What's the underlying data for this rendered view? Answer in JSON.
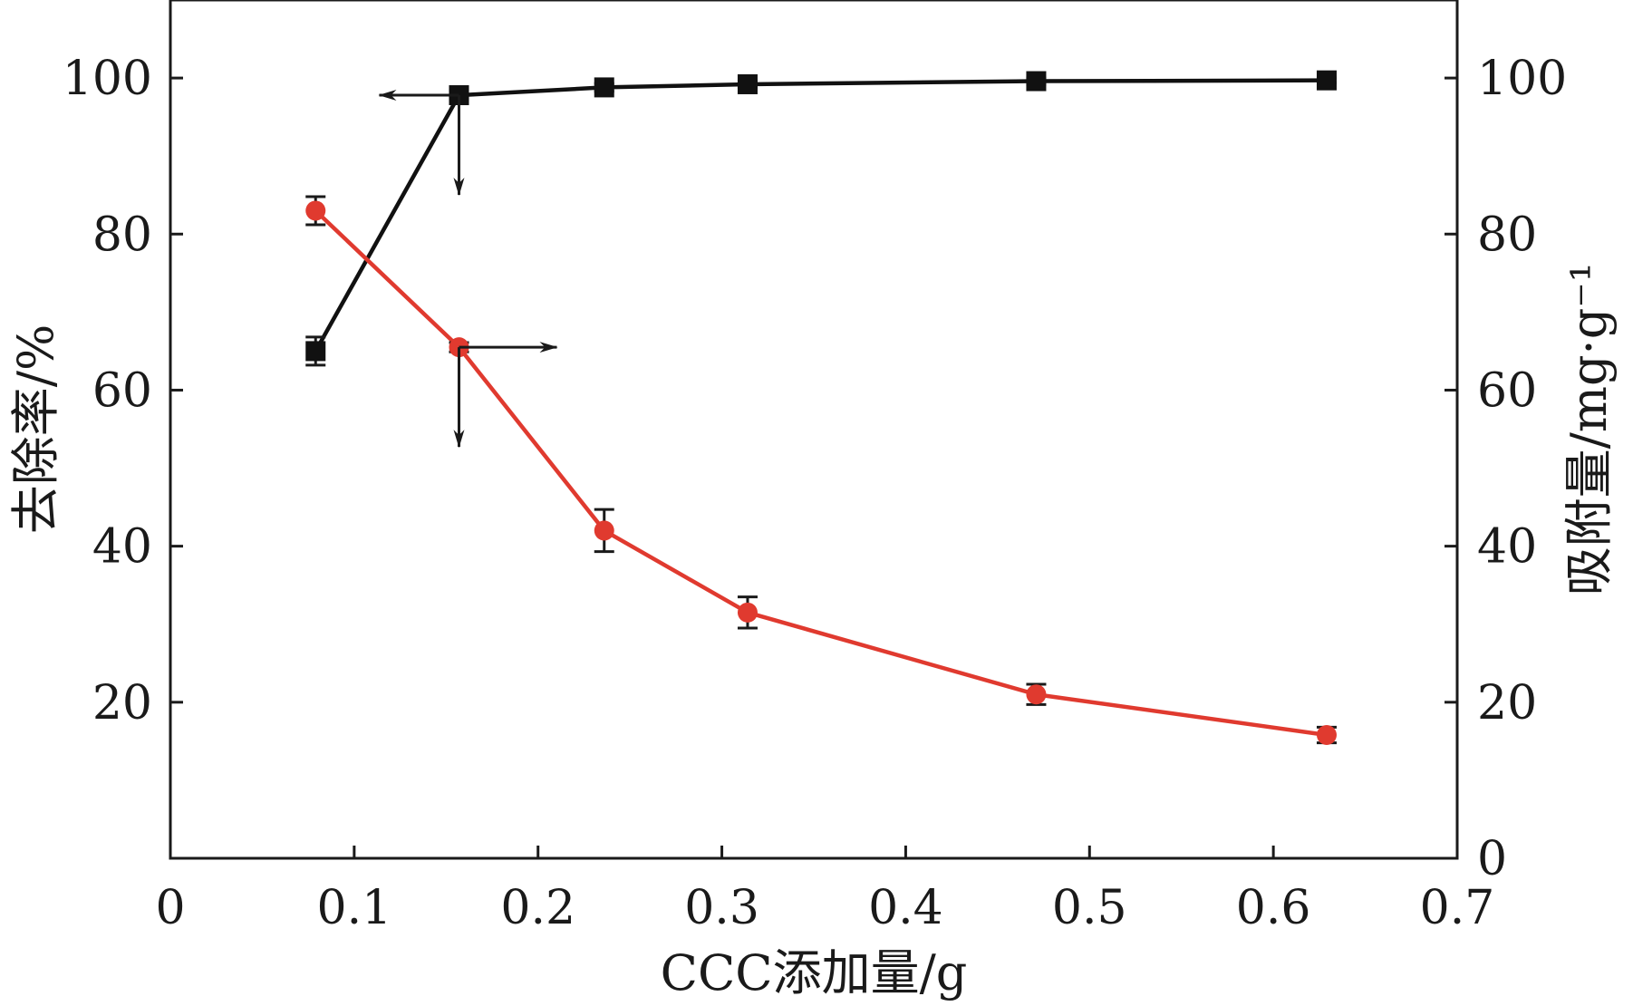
{
  "chart_data": {
    "type": "line",
    "xlabel": "CCC添加量/g",
    "ylabel_left": "去除率/%",
    "ylabel_right": "吸附量/mg·g⁻¹",
    "xlim": [
      0,
      0.7
    ],
    "ylim_left": [
      0,
      110
    ],
    "ylim_right": [
      0,
      110
    ],
    "x_ticks": [
      "0",
      "0.1",
      "0.2",
      "0.3",
      "0.4",
      "0.5",
      "0.6",
      "0.7"
    ],
    "y_ticks_left": [
      "20",
      "40",
      "60",
      "80",
      "100"
    ],
    "y_ticks_right": [
      "0",
      "20",
      "40",
      "60",
      "80",
      "100"
    ],
    "grid": false,
    "series": [
      {
        "axis": "left",
        "color": "#111111",
        "marker": "square",
        "x": [
          0.079,
          0.157,
          0.236,
          0.314,
          0.471,
          0.629
        ],
        "y": [
          65.0,
          97.8,
          98.8,
          99.2,
          99.6,
          99.7
        ],
        "err": [
          1.8,
          0.6,
          0.5,
          0.4,
          0.4,
          0.3
        ]
      },
      {
        "axis": "right",
        "color": "#e03a2f",
        "marker": "circle",
        "x": [
          0.079,
          0.157,
          0.236,
          0.314,
          0.471,
          0.629
        ],
        "y": [
          83.0,
          65.5,
          42.0,
          31.5,
          21.0,
          15.8
        ],
        "err": [
          1.8,
          0.6,
          2.7,
          2.0,
          1.3,
          1.0
        ]
      }
    ],
    "annotations": [
      {
        "type": "arrow",
        "series": 0,
        "direction": "left-axis"
      },
      {
        "type": "arrow",
        "series": 1,
        "direction": "right-axis"
      }
    ]
  }
}
